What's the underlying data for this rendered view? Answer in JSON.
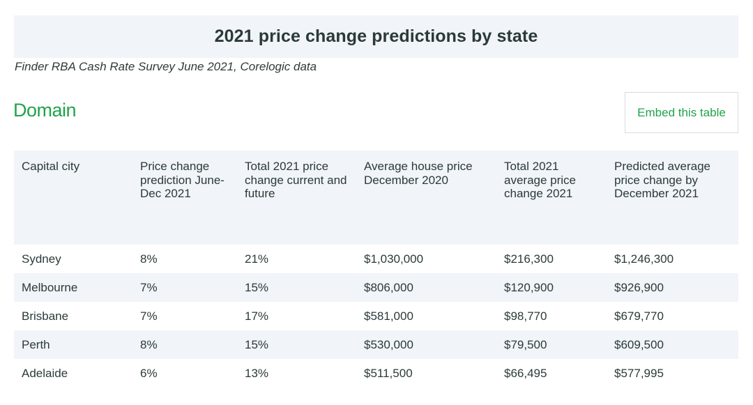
{
  "title": "2021 price change predictions by state",
  "subtitle": "Finder RBA Cash Rate Survey June 2021, Corelogic data",
  "brand": "Domain",
  "embed_button": "Embed this table",
  "table": {
    "headers": [
      "Capital city",
      "Price change prediction June-Dec 2021",
      "Total 2021 price change current and future",
      "Average house price December 2020",
      "Total 2021 average price change 2021",
      "Predicted average price change by December 2021"
    ],
    "rows": [
      [
        "Sydney",
        "8%",
        "21%",
        "$1,030,000",
        "$216,300",
        "$1,246,300"
      ],
      [
        "Melbourne",
        "7%",
        "15%",
        "$806,000",
        "$120,900",
        "$926,900"
      ],
      [
        "Brisbane",
        "7%",
        "17%",
        "$581,000",
        "$98,770",
        "$679,770"
      ],
      [
        "Perth",
        "8%",
        "15%",
        "$530,000",
        "$79,500",
        "$609,500"
      ],
      [
        "Adelaide",
        "6%",
        "13%",
        "$511,500",
        "$66,495",
        "$577,995"
      ]
    ]
  },
  "colors": {
    "brand_green": "#1fa34a",
    "header_background": "#f1f4f8",
    "text": "#2b3a39"
  }
}
